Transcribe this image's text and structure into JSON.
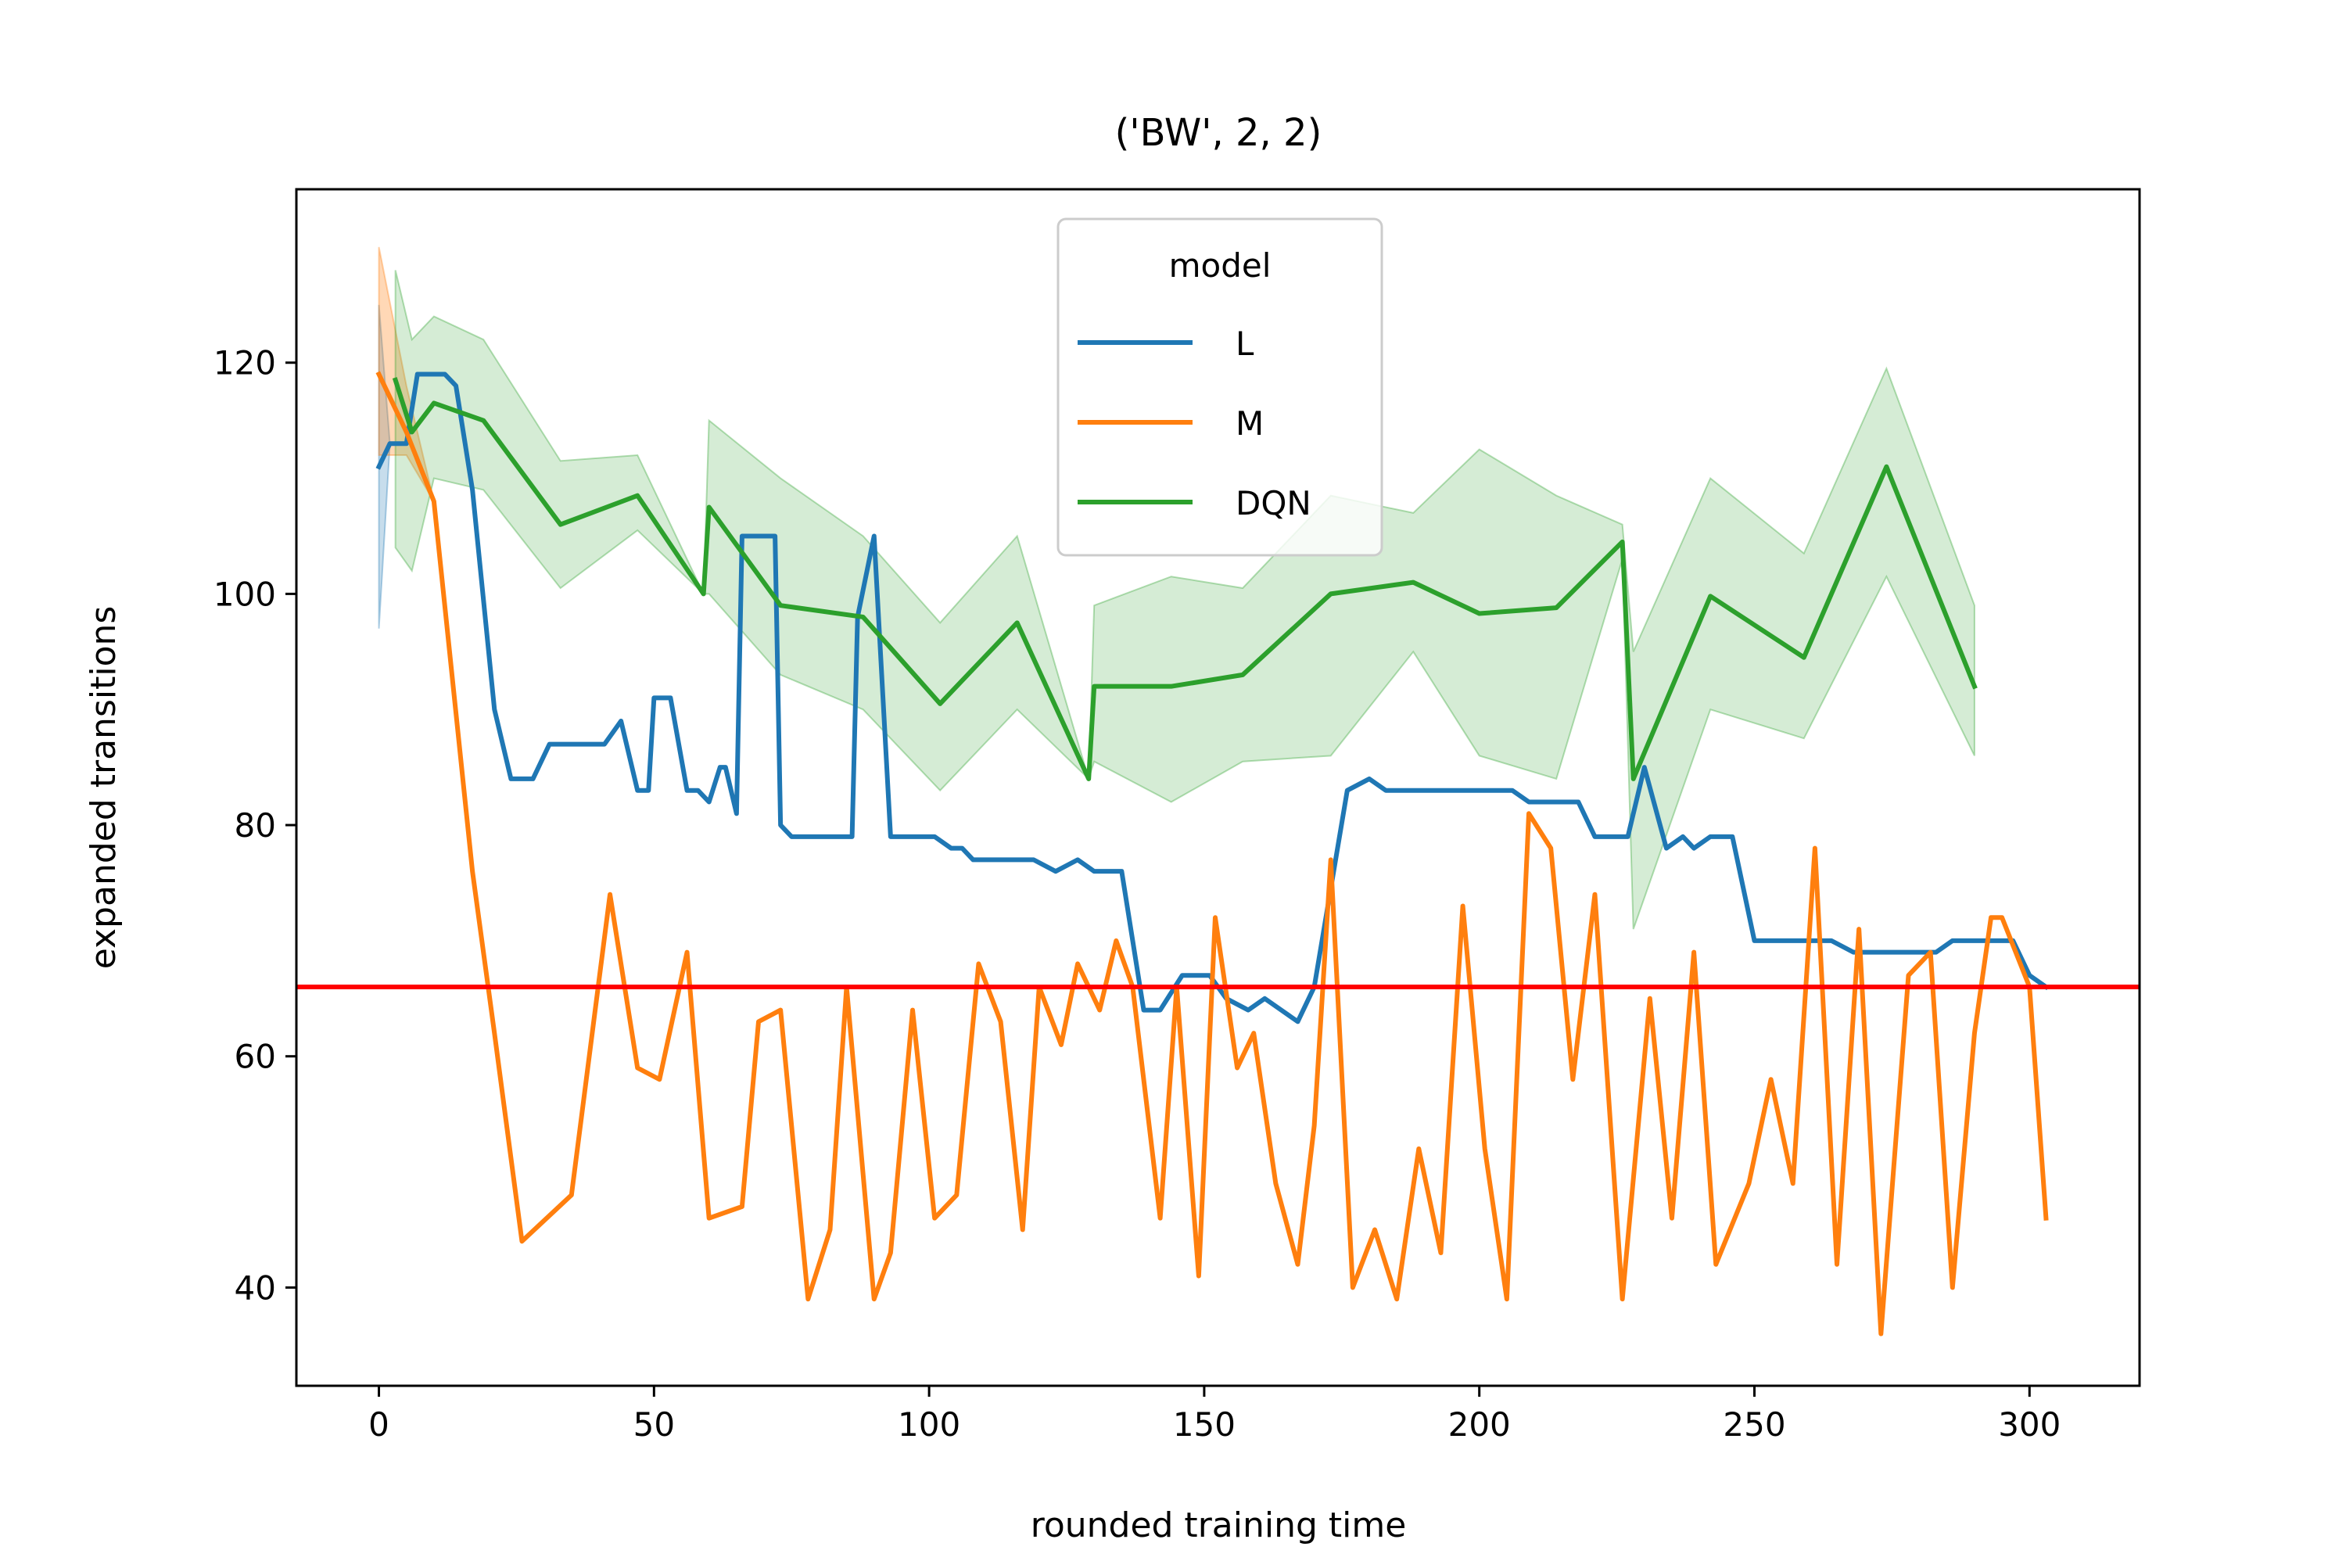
{
  "chart_data": {
    "type": "line",
    "title": "('BW', 2, 2)",
    "xlabel": "rounded training time",
    "ylabel": "expanded transitions",
    "xlim": [
      -15,
      320
    ],
    "ylim": [
      31.5,
      135
    ],
    "xticks": [
      0,
      50,
      100,
      150,
      200,
      250,
      300
    ],
    "yticks": [
      40,
      60,
      80,
      100,
      120
    ],
    "grid": false,
    "legend": {
      "title": "model",
      "placement": "top-center"
    },
    "reference_line": {
      "y": 66,
      "color": "#ff0000"
    },
    "series": [
      {
        "name": "L",
        "color": "#1f77b4",
        "points": [
          [
            0,
            111
          ],
          [
            2,
            113
          ],
          [
            5,
            113
          ],
          [
            7,
            119
          ],
          [
            12,
            119
          ],
          [
            14,
            118
          ],
          [
            17,
            109
          ],
          [
            21,
            90
          ],
          [
            24,
            84
          ],
          [
            28,
            84
          ],
          [
            31,
            87
          ],
          [
            41,
            87
          ],
          [
            44,
            89
          ],
          [
            47,
            83
          ],
          [
            49,
            83
          ],
          [
            50,
            91
          ],
          [
            53,
            91
          ],
          [
            56,
            83
          ],
          [
            58,
            83
          ],
          [
            60,
            82
          ],
          [
            62,
            85
          ],
          [
            63,
            85
          ],
          [
            65,
            81
          ],
          [
            66,
            105
          ],
          [
            72,
            105
          ],
          [
            73,
            80
          ],
          [
            75,
            79
          ],
          [
            86,
            79
          ],
          [
            87,
            98
          ],
          [
            90,
            105
          ],
          [
            93,
            79
          ],
          [
            101,
            79
          ],
          [
            104,
            78
          ],
          [
            106,
            78
          ],
          [
            108,
            77
          ],
          [
            119,
            77
          ],
          [
            123,
            76
          ],
          [
            127,
            77
          ],
          [
            130,
            76
          ],
          [
            135,
            76
          ],
          [
            139,
            64
          ],
          [
            142,
            64
          ],
          [
            146,
            67
          ],
          [
            151,
            67
          ],
          [
            154,
            65
          ],
          [
            158,
            64
          ],
          [
            161,
            65
          ],
          [
            164,
            64
          ],
          [
            167,
            63
          ],
          [
            170,
            66
          ],
          [
            176,
            83
          ],
          [
            180,
            84
          ],
          [
            183,
            83
          ],
          [
            206,
            83
          ],
          [
            209,
            82
          ],
          [
            218,
            82
          ],
          [
            221,
            79
          ],
          [
            227,
            79
          ],
          [
            230,
            85
          ],
          [
            234,
            78
          ],
          [
            237,
            79
          ],
          [
            239,
            78
          ],
          [
            242,
            79
          ],
          [
            246,
            79
          ],
          [
            250,
            70
          ],
          [
            264,
            70
          ],
          [
            268,
            69
          ],
          [
            283,
            69
          ],
          [
            286,
            70
          ],
          [
            297,
            70
          ],
          [
            300,
            67
          ],
          [
            303,
            66
          ]
        ],
        "band": [
          [
            0,
            97,
            125
          ],
          [
            2,
            113,
            113
          ],
          [
            5,
            113,
            113
          ],
          [
            7,
            119,
            119
          ]
        ]
      },
      {
        "name": "M",
        "color": "#ff7f0e",
        "points": [
          [
            0,
            119
          ],
          [
            5,
            114
          ],
          [
            10,
            108
          ],
          [
            17,
            76
          ],
          [
            21,
            62
          ],
          [
            26,
            44
          ],
          [
            35,
            48
          ],
          [
            42,
            74
          ],
          [
            47,
            59
          ],
          [
            51,
            58
          ],
          [
            56,
            69
          ],
          [
            60,
            46
          ],
          [
            66,
            47
          ],
          [
            69,
            63
          ],
          [
            73,
            64
          ],
          [
            78,
            39
          ],
          [
            82,
            45
          ],
          [
            85,
            66
          ],
          [
            90,
            39
          ],
          [
            93,
            43
          ],
          [
            97,
            64
          ],
          [
            101,
            46
          ],
          [
            105,
            48
          ],
          [
            109,
            68
          ],
          [
            113,
            63
          ],
          [
            117,
            45
          ],
          [
            120,
            66
          ],
          [
            124,
            61
          ],
          [
            127,
            68
          ],
          [
            131,
            64
          ],
          [
            134,
            70
          ],
          [
            137,
            66
          ],
          [
            142,
            46
          ],
          [
            145,
            66
          ],
          [
            149,
            41
          ],
          [
            152,
            72
          ],
          [
            156,
            59
          ],
          [
            159,
            62
          ],
          [
            163,
            49
          ],
          [
            167,
            42
          ],
          [
            170,
            54
          ],
          [
            173,
            77
          ],
          [
            177,
            40
          ],
          [
            181,
            45
          ],
          [
            185,
            39
          ],
          [
            189,
            52
          ],
          [
            193,
            43
          ],
          [
            197,
            73
          ],
          [
            201,
            52
          ],
          [
            205,
            39
          ],
          [
            209,
            81
          ],
          [
            213,
            78
          ],
          [
            217,
            58
          ],
          [
            221,
            74
          ],
          [
            226,
            39
          ],
          [
            231,
            65
          ],
          [
            235,
            46
          ],
          [
            239,
            69
          ],
          [
            243,
            42
          ],
          [
            249,
            49
          ],
          [
            253,
            58
          ],
          [
            257,
            49
          ],
          [
            261,
            78
          ],
          [
            265,
            42
          ],
          [
            269,
            71
          ],
          [
            273,
            36
          ],
          [
            278,
            67
          ],
          [
            282,
            69
          ],
          [
            286,
            40
          ],
          [
            290,
            62
          ],
          [
            293,
            72
          ],
          [
            295,
            72
          ],
          [
            300,
            66
          ],
          [
            303,
            46
          ]
        ],
        "band": [
          [
            0,
            112,
            130
          ],
          [
            5,
            112,
            118
          ],
          [
            10,
            108,
            108
          ]
        ]
      },
      {
        "name": "DQN",
        "color": "#2ca02c",
        "points": [
          [
            3,
            118.5
          ],
          [
            6,
            114
          ],
          [
            10,
            116.5
          ],
          [
            19,
            115
          ],
          [
            33,
            106
          ],
          [
            47,
            108.5
          ],
          [
            59,
            100
          ],
          [
            60,
            107.5
          ],
          [
            73,
            99
          ],
          [
            88,
            98
          ],
          [
            102,
            90.5
          ],
          [
            116,
            97.5
          ],
          [
            129,
            84
          ],
          [
            130,
            92
          ],
          [
            144,
            92
          ],
          [
            157,
            93
          ],
          [
            173,
            100
          ],
          [
            188,
            101
          ],
          [
            200,
            98.3
          ],
          [
            214,
            98.8
          ],
          [
            226,
            104.5
          ],
          [
            228,
            84
          ],
          [
            242,
            99.8
          ],
          [
            259,
            94.5
          ],
          [
            274,
            111
          ],
          [
            290,
            92
          ]
        ],
        "band": [
          [
            3,
            104,
            128
          ],
          [
            6,
            102,
            122
          ],
          [
            10,
            110,
            124
          ],
          [
            19,
            109,
            122
          ],
          [
            33,
            100.5,
            111.5
          ],
          [
            47,
            105.5,
            112
          ],
          [
            59,
            100,
            100
          ],
          [
            60,
            100,
            115
          ],
          [
            73,
            93,
            110
          ],
          [
            88,
            90,
            105
          ],
          [
            102,
            83,
            97.5
          ],
          [
            116,
            90,
            105
          ],
          [
            129,
            84,
            84
          ],
          [
            130,
            85.5,
            99
          ],
          [
            144,
            82,
            101.5
          ],
          [
            157,
            85.5,
            100.5
          ],
          [
            173,
            86,
            108.5
          ],
          [
            188,
            95,
            107
          ],
          [
            200,
            86,
            112.5
          ],
          [
            214,
            84,
            108.5
          ],
          [
            226,
            103,
            106
          ],
          [
            228,
            71,
            95
          ],
          [
            242,
            90,
            110
          ],
          [
            259,
            87.5,
            103.5
          ],
          [
            274,
            101.5,
            119.5
          ],
          [
            290,
            86,
            99
          ]
        ]
      }
    ]
  }
}
